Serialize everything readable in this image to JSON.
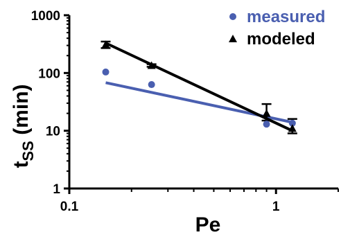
{
  "chart_data": {
    "type": "scatter",
    "xlabel": "Pe",
    "ylabel": "t_ss (min)",
    "ylabel_main": "t",
    "ylabel_sub": "SS",
    "ylabel_unit": " (min)",
    "xscale": "log",
    "yscale": "log",
    "xlim": [
      0.1,
      2.0
    ],
    "ylim": [
      1,
      1000
    ],
    "xticks": [
      0.1,
      1
    ],
    "xtick_labels": [
      "0.1",
      "1"
    ],
    "yticks": [
      1,
      10,
      100,
      1000
    ],
    "ytick_labels": [
      "1",
      "10",
      "100",
      "1000"
    ],
    "legend_position": "top-right",
    "grid": false,
    "series": [
      {
        "name": "measured",
        "marker": "circle",
        "color": "#4a5fb0",
        "x": [
          0.15,
          0.25,
          0.9,
          1.2
        ],
        "y": [
          104,
          63,
          13,
          13.5
        ],
        "fit_line": {
          "x": [
            0.15,
            1.2
          ],
          "y": [
            68,
            14
          ]
        }
      },
      {
        "name": "modeled",
        "marker": "triangle",
        "color": "#000000",
        "x": [
          0.15,
          0.25,
          0.9,
          1.2
        ],
        "y": [
          310,
          135,
          20,
          11
        ],
        "yerr_low": [
          270,
          128,
          15,
          9
        ],
        "yerr_high": [
          350,
          142,
          29,
          16
        ],
        "fit_line": {
          "x": [
            0.15,
            1.2
          ],
          "y": [
            330,
            10
          ]
        }
      }
    ]
  }
}
